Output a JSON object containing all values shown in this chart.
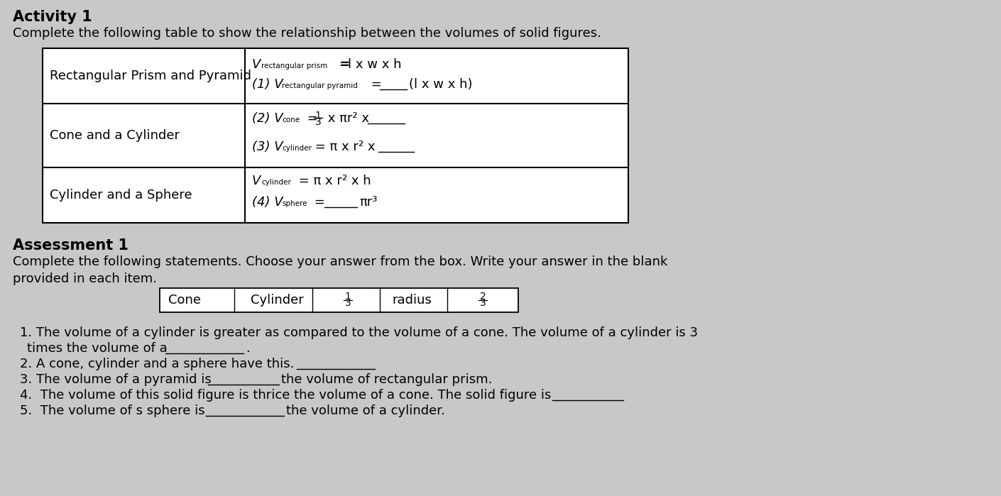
{
  "bg_color": "#c8c8c8",
  "title1": "Activity 1",
  "subtitle1": "Complete the following table to show the relationship between the volumes of solid figures.",
  "title2": "Assessment 1",
  "subtitle2_line1": "Complete the following statements. Choose your answer from the box. Write your answer in the blank",
  "subtitle2_line2": "provided in each item.",
  "box_items": [
    "Cone",
    "Cylinder",
    "1/3",
    "radius",
    "2/3"
  ],
  "table_left_col": [
    "Rectangular Prism and Pyramid",
    "Cone and a Cylinder",
    "Cylinder and a Sphere"
  ],
  "statements": [
    "1. The volume of a cylinder is greater as compared to the volume of a cone. The volume of a cylinder is 3",
    "times the volume of a",
    "2. A cone, cylinder and a sphere have this.",
    "3. The volume of a pyramid is",
    "the volume of rectangular prism.",
    "4.  The volume of this solid figure is thrice the volume of a cone. The solid figure is",
    "5.  The volume of s sphere is",
    "the volume of a cylinder."
  ]
}
